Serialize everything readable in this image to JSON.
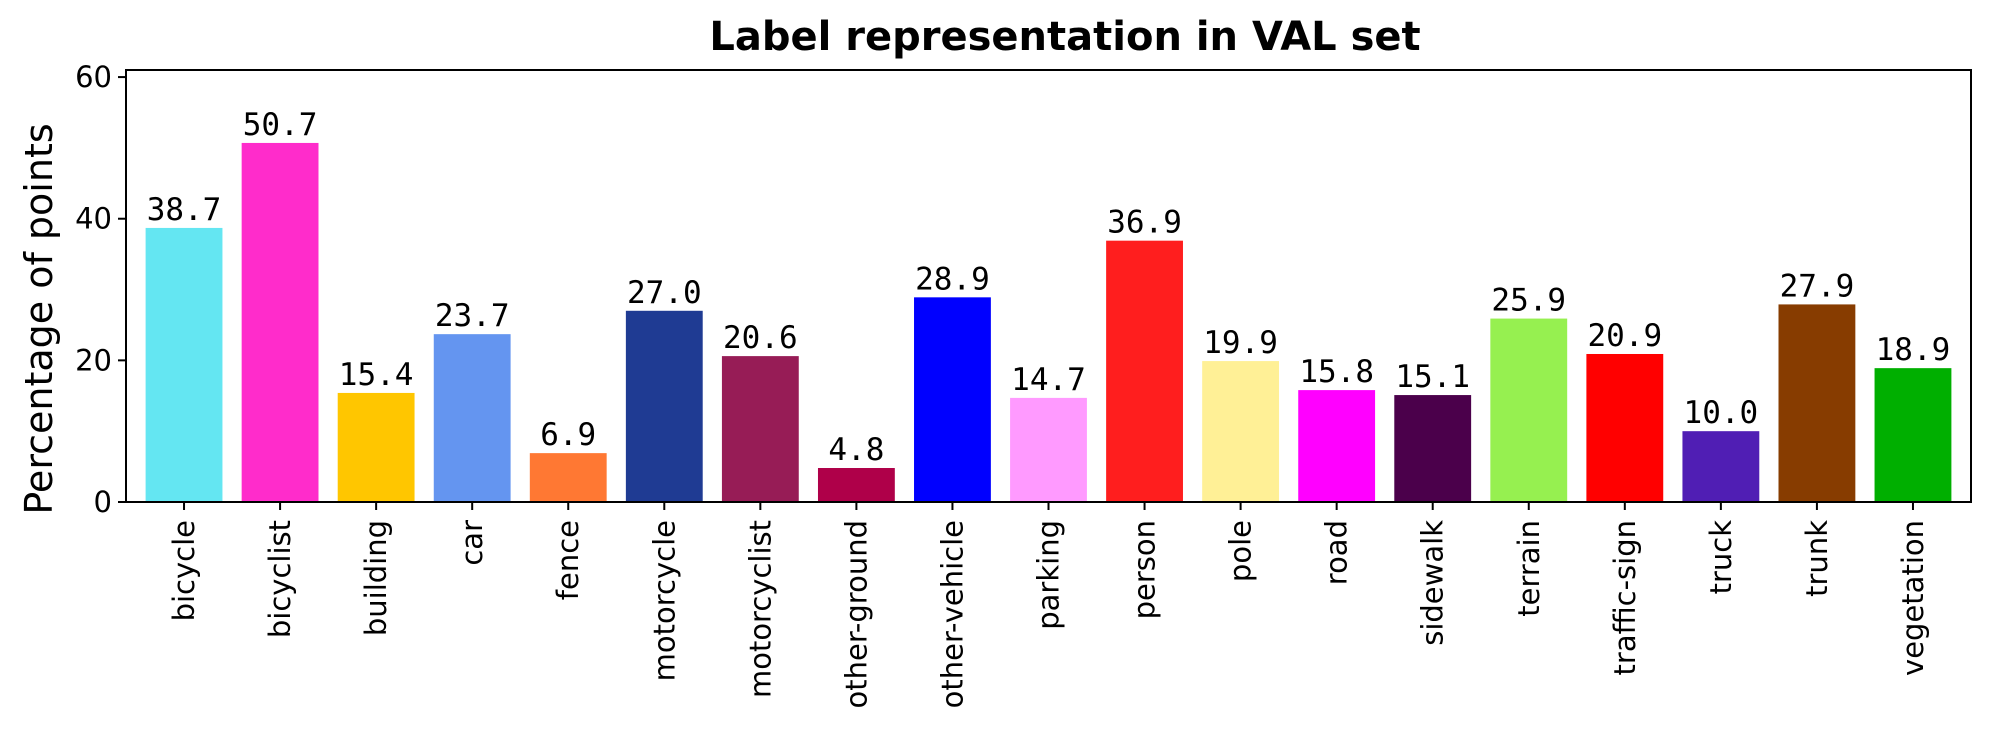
{
  "chart_data": {
    "type": "bar",
    "title": "Label representation in VAL set",
    "xlabel": "",
    "ylabel": "Percentage of points",
    "ylim": [
      0,
      61
    ],
    "yticks": [
      0,
      20,
      40,
      60
    ],
    "grid": false,
    "categories": [
      "bicycle",
      "bicyclist",
      "building",
      "car",
      "fence",
      "motorcycle",
      "motorcyclist",
      "other-ground",
      "other-vehicle",
      "parking",
      "person",
      "pole",
      "road",
      "sidewalk",
      "terrain",
      "traffic-sign",
      "truck",
      "trunk",
      "vegetation"
    ],
    "values": [
      38.7,
      50.7,
      15.4,
      23.7,
      6.9,
      27.0,
      20.6,
      4.8,
      28.9,
      14.7,
      36.9,
      19.9,
      15.8,
      15.1,
      25.9,
      20.9,
      10.0,
      27.9,
      18.9
    ],
    "value_labels": [
      "38.7",
      "50.7",
      "15.4",
      "23.7",
      "6.9",
      "27.0",
      "20.6",
      "4.8",
      "28.9",
      "14.7",
      "36.9",
      "19.9",
      "15.8",
      "15.1",
      "25.9",
      "20.9",
      "10.0",
      "27.9",
      "18.9"
    ],
    "colors": [
      "#64e6f2",
      "#ff2ccb",
      "#ffc600",
      "#6495f0",
      "#ff7833",
      "#1f3b93",
      "#971c56",
      "#af0049",
      "#0000ff",
      "#ff9aff",
      "#ff1e1e",
      "#fff096",
      "#ff00ff",
      "#4b004b",
      "#96f050",
      "#ff0000",
      "#501eb4",
      "#873c00",
      "#00af00"
    ]
  }
}
